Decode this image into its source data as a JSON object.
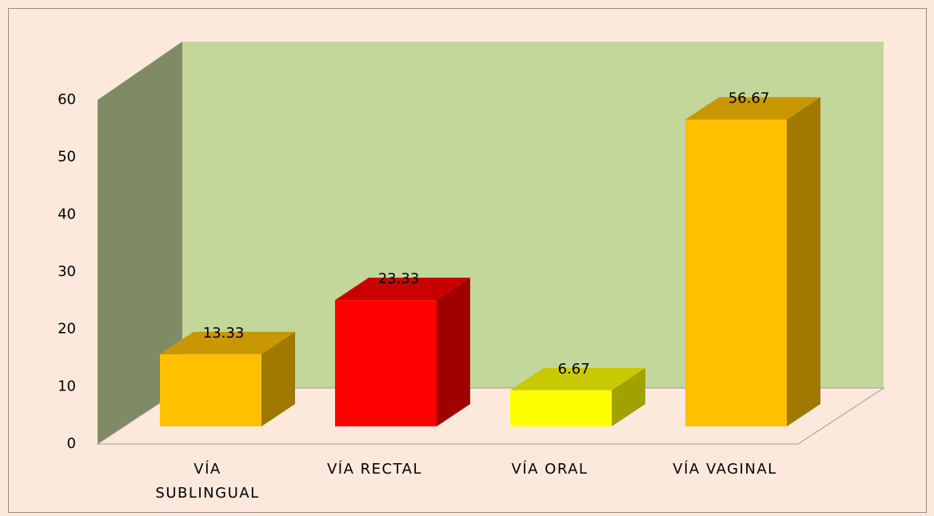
{
  "chart_data": {
    "type": "bar",
    "categories": [
      "VÍA SUBLINGUAL",
      "VÍA RECTAL",
      "VÍA ORAL",
      "VÍA VAGINAL"
    ],
    "values": [
      13.33,
      23.33,
      6.67,
      56.67
    ],
    "colors": [
      "#ffc000",
      "#ff0000",
      "#ffff00",
      "#ffc000"
    ],
    "ylim": [
      0,
      60
    ],
    "yticks": [
      0,
      10,
      20,
      30,
      40,
      50,
      60
    ],
    "grid": false
  }
}
